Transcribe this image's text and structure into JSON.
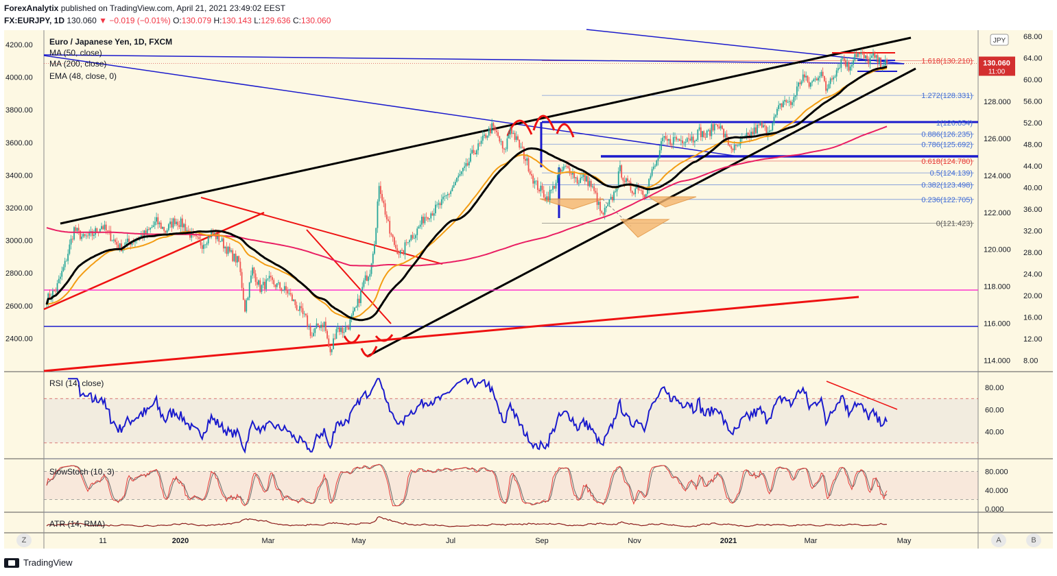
{
  "header": {
    "publisher": "ForexAnalytix",
    "published_on": "published on TradingView.com, April 21, 2021 23:49:02 EEST",
    "symbol": "FX:EURJPY, 1D",
    "price": "130.060",
    "arrow": "▼",
    "change": "−0.019 (−0.01%)",
    "o_label": "O:",
    "o": "130.079",
    "h_label": "H:",
    "h": "130.143",
    "l_label": "L:",
    "l": "129.636",
    "c_label": "C:",
    "c": "130.060"
  },
  "legend": {
    "title": "Euro / Japanese Yen, 1D, FXCM",
    "ma50": "MA (50, close)",
    "ma200": "MA (200, close)",
    "ema48": "EMA (48, close, 0)"
  },
  "currency_badge": "JPY",
  "price_label": {
    "price": "130.060",
    "countdown": "11:00"
  },
  "colors": {
    "bg": "#fdf8e3",
    "up": "#26a69a",
    "down": "#ef5350",
    "ma50": "#000000",
    "ma200": "#e91e63",
    "ema48": "#f39c12",
    "blue_lines": "#1a1acc",
    "red_lines": "#ee1111",
    "magenta_line": "#ff33cc",
    "rsi": "#1a1acc",
    "stoch_k": "#e53935",
    "stoch_d": "#666666",
    "atr": "#8b1a1a"
  },
  "chart_data": {
    "type": "candlestick",
    "symbol": "EURJPY",
    "timeframe": "1D",
    "right_axis_ticks": [
      114.0,
      116.0,
      118.0,
      120.0,
      122.0,
      124.0,
      126.0,
      128.0
    ],
    "right_axis_labels": [
      "114.000",
      "116.000",
      "118.000",
      "120.000",
      "122.000",
      "124.000",
      "126.000",
      "128.000"
    ],
    "right_axis_outer_ticks": [
      "68.00",
      "64.00",
      "60.00",
      "56.00",
      "52.00",
      "48.00",
      "44.00",
      "40.00",
      "36.00",
      "32.00",
      "28.00",
      "24.00",
      "20.00",
      "16.00",
      "12.00",
      "8.00"
    ],
    "left_axis_ticks": [
      "4200.00",
      "4000.00",
      "3800.00",
      "3600.00",
      "3400.00",
      "3200.00",
      "3000.00",
      "2800.00",
      "2600.00",
      "2400.00"
    ],
    "x_axis_labels": [
      "11",
      "2020",
      "Mar",
      "May",
      "Jul",
      "Sep",
      "Nov",
      "2021",
      "Mar",
      "May"
    ],
    "price_path": [
      [
        0,
        117.3
      ],
      [
        6,
        117.8
      ],
      [
        12,
        119.2
      ],
      [
        18,
        121.1
      ],
      [
        24,
        120.6
      ],
      [
        30,
        120.8
      ],
      [
        36,
        121.3
      ],
      [
        42,
        120.7
      ],
      [
        48,
        120.1
      ],
      [
        54,
        120.4
      ],
      [
        60,
        120.6
      ],
      [
        66,
        120.9
      ],
      [
        72,
        121.5
      ],
      [
        78,
        121.0
      ],
      [
        84,
        121.6
      ],
      [
        90,
        121.3
      ],
      [
        96,
        120.6
      ],
      [
        102,
        120.3
      ],
      [
        108,
        120.9
      ],
      [
        114,
        120.5
      ],
      [
        120,
        119.8
      ],
      [
        126,
        119.3
      ],
      [
        130,
        116.8
      ],
      [
        135,
        118.9
      ],
      [
        140,
        117.9
      ],
      [
        146,
        118.3
      ],
      [
        152,
        118.0
      ],
      [
        158,
        117.7
      ],
      [
        164,
        116.9
      ],
      [
        170,
        116.2
      ],
      [
        174,
        115.3
      ],
      [
        178,
        115.9
      ],
      [
        182,
        116.0
      ],
      [
        186,
        114.3
      ],
      [
        190,
        115.8
      ],
      [
        194,
        115.6
      ],
      [
        198,
        115.9
      ],
      [
        203,
        116.8
      ],
      [
        208,
        118.2
      ],
      [
        212,
        118.9
      ],
      [
        216,
        121.1
      ],
      [
        218,
        123.6
      ],
      [
        221,
        122.4
      ],
      [
        225,
        120.9
      ],
      [
        229,
        120.1
      ],
      [
        233,
        119.7
      ],
      [
        237,
        120.6
      ],
      [
        242,
        120.9
      ],
      [
        248,
        121.8
      ],
      [
        254,
        122.1
      ],
      [
        260,
        122.6
      ],
      [
        265,
        123.2
      ],
      [
        270,
        123.9
      ],
      [
        275,
        124.4
      ],
      [
        280,
        125.3
      ],
      [
        284,
        125.6
      ],
      [
        288,
        126.2
      ],
      [
        292,
        126.6
      ],
      [
        296,
        126.1
      ],
      [
        300,
        125.2
      ],
      [
        304,
        126.6
      ],
      [
        308,
        125.9
      ],
      [
        312,
        125.3
      ],
      [
        316,
        124.5
      ],
      [
        320,
        123.6
      ],
      [
        324,
        123.2
      ],
      [
        328,
        122.8
      ],
      [
        332,
        123.3
      ],
      [
        336,
        124.1
      ],
      [
        340,
        124.4
      ],
      [
        344,
        124.3
      ],
      [
        348,
        123.7
      ],
      [
        352,
        123.9
      ],
      [
        356,
        123.6
      ],
      [
        360,
        122.9
      ],
      [
        364,
        121.8
      ],
      [
        368,
        122.3
      ],
      [
        372,
        123.0
      ],
      [
        376,
        124.3
      ],
      [
        380,
        123.6
      ],
      [
        384,
        123.2
      ],
      [
        388,
        123.4
      ],
      [
        392,
        123.0
      ],
      [
        396,
        124.0
      ],
      [
        400,
        124.7
      ],
      [
        404,
        125.9
      ],
      [
        408,
        125.8
      ],
      [
        412,
        126.0
      ],
      [
        416,
        125.9
      ],
      [
        420,
        126.1
      ],
      [
        424,
        126.0
      ],
      [
        428,
        126.4
      ],
      [
        432,
        126.1
      ],
      [
        436,
        126.5
      ],
      [
        440,
        126.9
      ],
      [
        444,
        126.2
      ],
      [
        448,
        125.6
      ],
      [
        452,
        125.4
      ],
      [
        456,
        125.9
      ],
      [
        460,
        126.1
      ],
      [
        464,
        126.4
      ],
      [
        468,
        126.7
      ],
      [
        472,
        126.4
      ],
      [
        476,
        126.8
      ],
      [
        480,
        127.6
      ],
      [
        484,
        128.1
      ],
      [
        488,
        127.8
      ],
      [
        492,
        128.7
      ],
      [
        496,
        129.4
      ],
      [
        500,
        128.9
      ],
      [
        504,
        129.2
      ],
      [
        508,
        129.7
      ],
      [
        511,
        128.5
      ],
      [
        514,
        129.3
      ],
      [
        518,
        129.7
      ],
      [
        522,
        130.4
      ],
      [
        526,
        129.8
      ],
      [
        530,
        130.6
      ],
      [
        534,
        130.5
      ],
      [
        538,
        130.2
      ],
      [
        542,
        130.4
      ],
      [
        546,
        130.1
      ],
      [
        550,
        130.06
      ]
    ],
    "rsi": {
      "name": "RSI (14, close)",
      "ticks": [
        "80.00",
        "60.00",
        "40.00"
      ],
      "overbought": 70,
      "oversold": 30
    },
    "slowstoch": {
      "name": "SlowStoch (10, 3)",
      "ticks": [
        "80.000",
        "40.000",
        "0.000"
      ]
    },
    "atr": {
      "name": "ATR (14, RMA)"
    },
    "fibonacci": [
      {
        "label": "1.618(130.210)",
        "value": 130.21,
        "color": "#e53935"
      },
      {
        "label": "1.272(128.331)",
        "value": 128.331,
        "color": "#3f6bd6"
      },
      {
        "label": "1(126.854)",
        "value": 126.854,
        "color": "#3f6bd6"
      },
      {
        "label": "0.886(126.235)",
        "value": 126.235,
        "color": "#3f6bd6"
      },
      {
        "label": "0.786(125.692)",
        "value": 125.692,
        "color": "#3f6bd6"
      },
      {
        "label": "0.618(124.780)",
        "value": 124.78,
        "color": "#e53935"
      },
      {
        "label": "0.5(124.139)",
        "value": 124.139,
        "color": "#3f6bd6"
      },
      {
        "label": "0.382(123.498)",
        "value": 123.498,
        "color": "#3f6bd6"
      },
      {
        "label": "0.236(122.705)",
        "value": 122.705,
        "color": "#3f6bd6"
      },
      {
        "label": "0(121.423)",
        "value": 121.423,
        "color": "#555555"
      }
    ]
  },
  "footer": {
    "brand": "TradingView",
    "left_btn": "Z",
    "right_btns": [
      "A",
      "B"
    ]
  }
}
